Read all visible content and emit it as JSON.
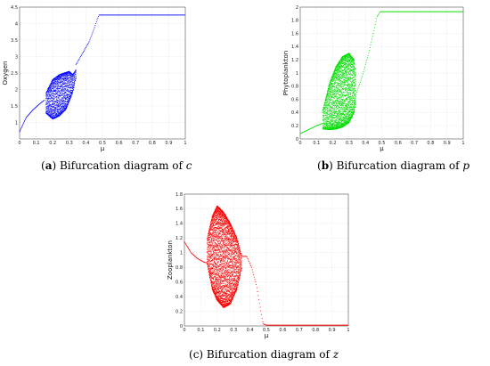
{
  "chart_data": [
    {
      "type": "scatter",
      "panel": "a",
      "caption_label": "a",
      "caption_text": "Bifurcation diagram of",
      "caption_var": "c",
      "xlabel": "μ",
      "ylabel": "Oxygen",
      "xlim": [
        0,
        1
      ],
      "ylim": [
        0.5,
        4.5
      ],
      "xticks": [
        "0",
        "0.1",
        "0.2",
        "0.3",
        "0.4",
        "0.5",
        "0.6",
        "0.7",
        "0.8",
        "0.9",
        "1"
      ],
      "yticks": [
        "1",
        "1.5",
        "2",
        "2.5",
        "3",
        "3.5",
        "4",
        "4.5"
      ],
      "grid": true,
      "color": "#0000ff",
      "pre_x": [
        0.0,
        0.04,
        0.08,
        0.12,
        0.15
      ],
      "pre_y": [
        0.72,
        1.15,
        1.38,
        1.56,
        1.68
      ],
      "osc_x": [
        0.16,
        0.2,
        0.24,
        0.28,
        0.3,
        0.32,
        0.34
      ],
      "osc_min": [
        1.28,
        1.1,
        1.2,
        1.4,
        1.65,
        1.9,
        2.35
      ],
      "osc_max": [
        1.9,
        2.3,
        2.45,
        2.52,
        2.55,
        2.45,
        2.6
      ],
      "post_x": [
        0.34,
        0.38,
        0.42,
        0.45,
        0.47,
        0.48,
        0.6,
        0.8,
        1.0
      ],
      "post_y": [
        2.75,
        3.1,
        3.45,
        3.85,
        4.15,
        4.26,
        4.26,
        4.26,
        4.26
      ]
    },
    {
      "type": "scatter",
      "panel": "b",
      "caption_label": "b",
      "caption_text": "Bifurcation diagram of",
      "caption_var": "p",
      "xlabel": "μ",
      "ylabel": "Phytoplankton",
      "xlim": [
        0,
        1
      ],
      "ylim": [
        0,
        2
      ],
      "xticks": [
        "0",
        "0.1",
        "0.2",
        "0.3",
        "0.4",
        "0.5",
        "0.6",
        "0.7",
        "0.8",
        "0.9",
        "1"
      ],
      "yticks": [
        "0",
        "0.2",
        "0.4",
        "0.6",
        "0.8",
        "1",
        "1.2",
        "1.4",
        "1.6",
        "1.8",
        "2"
      ],
      "grid": true,
      "color": "#00dd00",
      "pre_x": [
        0.0,
        0.05,
        0.1,
        0.14
      ],
      "pre_y": [
        0.08,
        0.14,
        0.2,
        0.24
      ],
      "osc_x": [
        0.14,
        0.18,
        0.22,
        0.26,
        0.3,
        0.33,
        0.34
      ],
      "osc_min": [
        0.15,
        0.14,
        0.15,
        0.18,
        0.25,
        0.4,
        0.55
      ],
      "osc_max": [
        0.45,
        0.85,
        1.1,
        1.25,
        1.3,
        1.2,
        0.95
      ],
      "post_x": [
        0.34,
        0.38,
        0.42,
        0.45,
        0.47,
        0.49,
        0.6,
        0.8,
        1.0
      ],
      "post_y": [
        0.65,
        0.95,
        1.3,
        1.62,
        1.85,
        1.93,
        1.93,
        1.93,
        1.93
      ]
    },
    {
      "type": "scatter",
      "panel": "c",
      "caption_label": "c",
      "caption_text": "Bifurcation diagram of",
      "caption_var": "z",
      "xlabel": "μ",
      "ylabel": "Zooplankton",
      "xlim": [
        0,
        1
      ],
      "ylim": [
        0,
        1.8
      ],
      "xticks": [
        "0",
        "0.1",
        "0.2",
        "0.3",
        "0.4",
        "0.5",
        "0.6",
        "0.7",
        "0.8",
        "0.9",
        "1"
      ],
      "yticks": [
        "0",
        "0.2",
        "0.4",
        "0.6",
        "0.8",
        "1",
        "1.2",
        "1.4",
        "1.6",
        "1.8"
      ],
      "grid": true,
      "color": "#ff0000",
      "pre_x": [
        0.0,
        0.04,
        0.08,
        0.12,
        0.14
      ],
      "pre_y": [
        1.15,
        1.0,
        0.92,
        0.87,
        0.86
      ],
      "osc_x": [
        0.14,
        0.17,
        0.2,
        0.24,
        0.28,
        0.32,
        0.35
      ],
      "osc_min": [
        0.84,
        0.5,
        0.35,
        0.25,
        0.3,
        0.5,
        0.8
      ],
      "osc_max": [
        1.2,
        1.5,
        1.64,
        1.55,
        1.4,
        1.2,
        0.95
      ],
      "post_x": [
        0.35,
        0.38,
        0.41,
        0.44,
        0.46,
        0.48,
        0.5,
        0.7,
        1.0
      ],
      "post_y": [
        0.95,
        0.95,
        0.8,
        0.55,
        0.28,
        0.03,
        0.01,
        0.01,
        0.01
      ]
    }
  ]
}
